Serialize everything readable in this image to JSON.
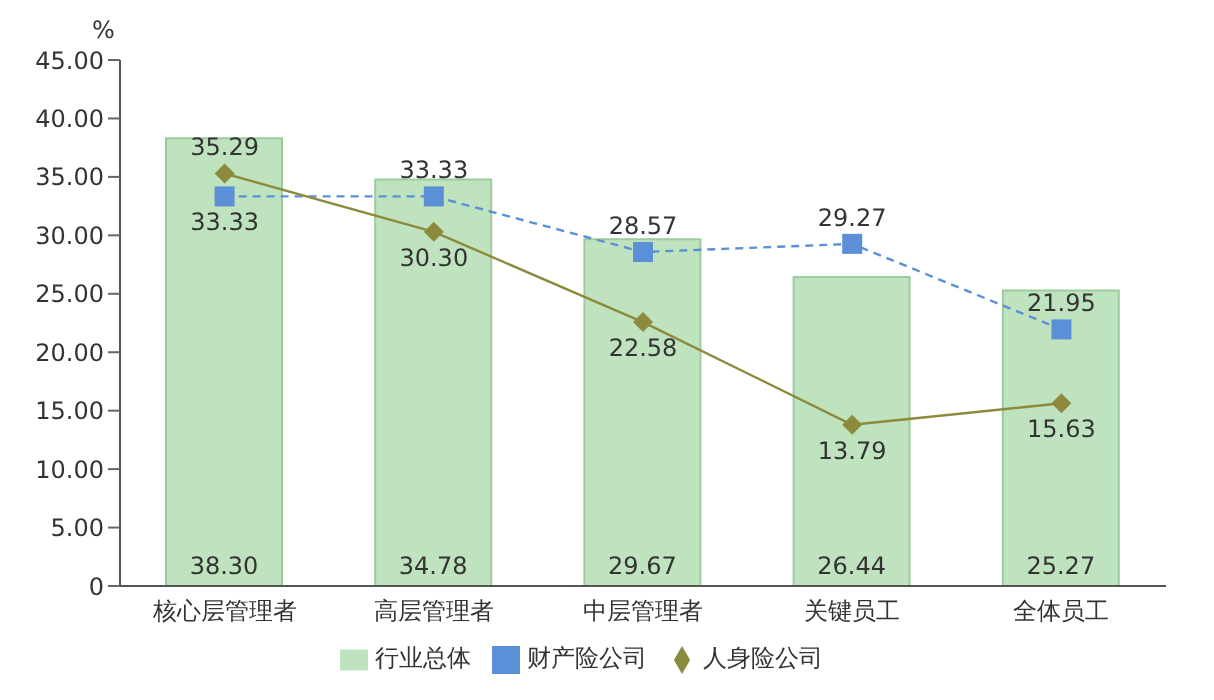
{
  "chart_data": {
    "type": "bar",
    "ylabel": "%",
    "categories": [
      "核心层管理者",
      "高层管理者",
      "中层管理者",
      "关键员工",
      "全体员工"
    ],
    "series": [
      {
        "name": "行业总体",
        "color": "#bfe3bf",
        "values": [
          38.3,
          34.78,
          29.67,
          26.44,
          25.27
        ],
        "value_labels": [
          "38.30",
          "34.78",
          "29.67",
          "26.44",
          "25.27"
        ]
      },
      {
        "name": "财产险公司",
        "type": "line",
        "color": "#5b8fd6",
        "marker": "square",
        "line_style": "dashed",
        "values": [
          33.33,
          33.33,
          28.57,
          29.27,
          21.95
        ],
        "value_labels": [
          "33.33",
          "33.33",
          "28.57",
          "29.27",
          "21.95"
        ]
      },
      {
        "name": "人身险公司",
        "type": "line",
        "color": "#8c8a3c",
        "marker": "diamond",
        "line_style": "solid",
        "values": [
          35.29,
          30.3,
          22.58,
          13.79,
          15.63
        ],
        "value_labels": [
          "35.29",
          "30.30",
          "22.58",
          "13.79",
          "15.63"
        ]
      }
    ],
    "ylim": [
      0,
      45
    ],
    "yticks": [
      {
        "value": 0,
        "label": "0"
      },
      {
        "value": 5,
        "label": "5.00"
      },
      {
        "value": 10,
        "label": "10.00"
      },
      {
        "value": 15,
        "label": "15.00"
      },
      {
        "value": 20,
        "label": "20.00"
      },
      {
        "value": 25,
        "label": "25.00"
      },
      {
        "value": 30,
        "label": "30.00"
      },
      {
        "value": 35,
        "label": "35.00"
      },
      {
        "value": 40,
        "label": "40.00"
      },
      {
        "value": 45,
        "label": "45.00"
      }
    ],
    "grid": false,
    "legend": "bottom"
  }
}
